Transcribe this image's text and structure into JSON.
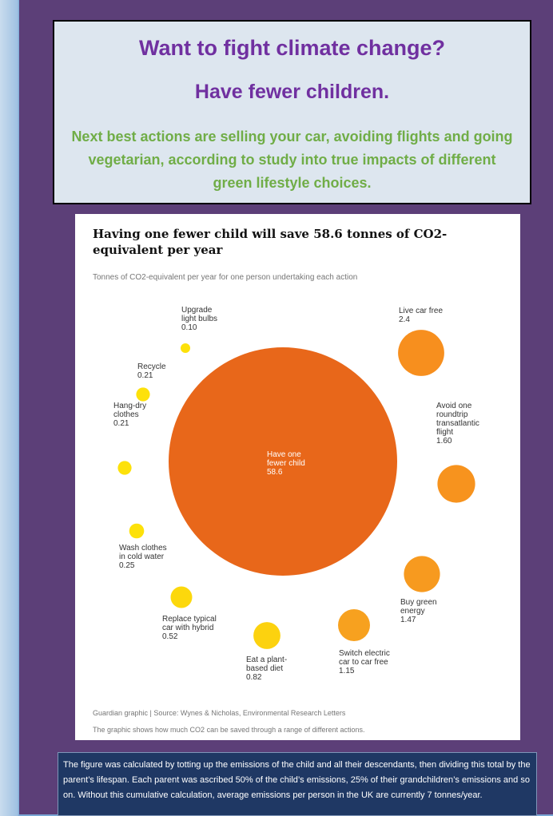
{
  "headline": {
    "title": "Want to fight climate change?",
    "subtitle": "Have fewer children.",
    "description": "Next best actions are selling your car, avoiding flights and going vegetarian, according to study into true impacts of different green lifestyle choices."
  },
  "chart_data": {
    "type": "bubble",
    "title": "Having one fewer child will save 58.6 tonnes of CO2-equivalent per year",
    "subtitle": "Tonnes of CO2-equivalent per year for one person undertaking each action",
    "unit": "Tonnes of CO2-equivalent per year",
    "items": [
      {
        "label": [
          "Have one",
          "fewer child"
        ],
        "value": 58.6,
        "display": "58.6",
        "color": "#e8671a"
      },
      {
        "label": [
          "Live car free"
        ],
        "value": 2.4,
        "display": "2.4",
        "color": "#f78f1e"
      },
      {
        "label": [
          "Avoid one",
          "roundtrip",
          "transatlantic",
          "flight"
        ],
        "value": 1.6,
        "display": "1.60",
        "color": "#f7931e"
      },
      {
        "label": [
          "Buy green",
          "energy"
        ],
        "value": 1.47,
        "display": "1.47",
        "color": "#f79a1f"
      },
      {
        "label": [
          "Switch electric",
          "car to car free"
        ],
        "value": 1.15,
        "display": "1.15",
        "color": "#f7a11f"
      },
      {
        "label": [
          "Eat a plant-",
          "based diet"
        ],
        "value": 0.82,
        "display": "0.82",
        "color": "#fcd20f"
      },
      {
        "label": [
          "Replace typical",
          "car with hybrid"
        ],
        "value": 0.52,
        "display": "0.52",
        "color": "#fcd80c"
      },
      {
        "label": [
          "Wash clothes",
          "in cold water"
        ],
        "value": 0.25,
        "display": "0.25",
        "color": "#fde10a"
      },
      {
        "label": [
          "Hang-dry",
          "clothes"
        ],
        "value": 0.21,
        "display": "0.21",
        "color": "#fde10a"
      },
      {
        "label": [
          "Recycle"
        ],
        "value": 0.21,
        "display": "0.21",
        "color": "#fde10a"
      },
      {
        "label": [
          "Upgrade",
          "light bulbs"
        ],
        "value": 0.1,
        "display": "0.10",
        "color": "#fde10a"
      }
    ],
    "source": "Guardian graphic | Source: Wynes & Nicholas, Environmental Research Letters",
    "caption": "The graphic shows how much CO2 can be saved through a range of different actions."
  },
  "footnote": "The figure was calculated by totting up the emissions of the child and all their descendants, then dividing this total by the parent’s lifespan. Each parent was ascribed 50% of the child’s emissions, 25% of their grandchildren’s emissions and so on. Without this cumulative calculation, average emissions per person in the UK are currently 7 tonnes/year."
}
